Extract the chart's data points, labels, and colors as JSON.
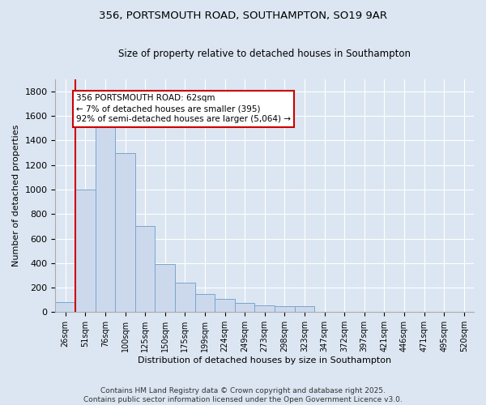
{
  "title_line1": "356, PORTSMOUTH ROAD, SOUTHAMPTON, SO19 9AR",
  "title_line2": "Size of property relative to detached houses in Southampton",
  "xlabel": "Distribution of detached houses by size in Southampton",
  "ylabel": "Number of detached properties",
  "categories": [
    "26sqm",
    "51sqm",
    "76sqm",
    "100sqm",
    "125sqm",
    "150sqm",
    "175sqm",
    "199sqm",
    "224sqm",
    "249sqm",
    "273sqm",
    "298sqm",
    "323sqm",
    "347sqm",
    "372sqm",
    "397sqm",
    "421sqm",
    "446sqm",
    "471sqm",
    "495sqm",
    "520sqm"
  ],
  "values": [
    80,
    1000,
    1600,
    1300,
    700,
    390,
    240,
    150,
    110,
    75,
    55,
    50,
    50,
    0,
    0,
    0,
    0,
    0,
    0,
    0,
    0
  ],
  "bar_color": "#ccd9ed",
  "bar_edge_color": "#7ba5cb",
  "annotation_text": "356 PORTSMOUTH ROAD: 62sqm\n← 7% of detached houses are smaller (395)\n92% of semi-detached houses are larger (5,064) →",
  "annotation_box_facecolor": "#ffffff",
  "annotation_box_edgecolor": "#cc0000",
  "vline_color": "#cc0000",
  "vline_x_index": 1.0,
  "ylim": [
    0,
    1900
  ],
  "yticks": [
    0,
    200,
    400,
    600,
    800,
    1000,
    1200,
    1400,
    1600,
    1800
  ],
  "footer_line1": "Contains HM Land Registry data © Crown copyright and database right 2025.",
  "footer_line2": "Contains public sector information licensed under the Open Government Licence v3.0.",
  "bg_color": "#dce6f2",
  "grid_color": "#ffffff",
  "bar_width": 1.0
}
